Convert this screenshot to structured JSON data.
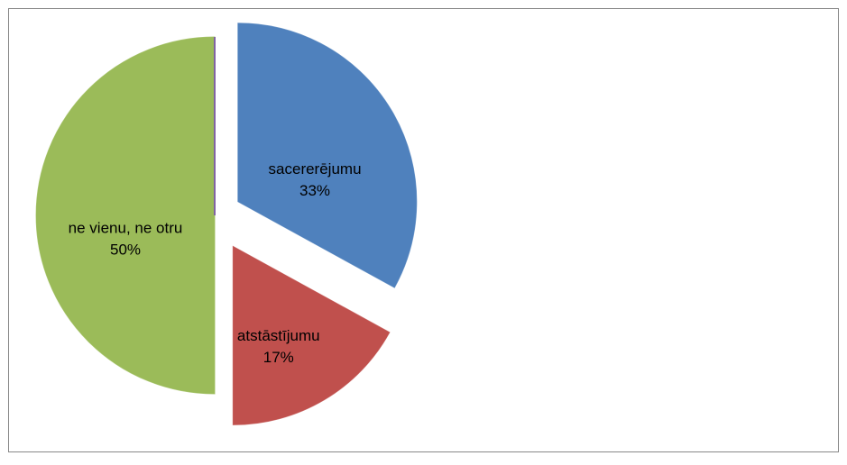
{
  "chart_data": {
    "type": "pie",
    "categories": [
      "sacererējumu",
      "atstāstījumu",
      "ne vienu, ne otru",
      null
    ],
    "values": [
      33,
      17,
      50,
      0
    ],
    "value_labels": [
      "33%",
      "17%",
      "50%",
      null
    ],
    "colors": [
      "#4f81bd",
      "#c0504d",
      "#9bbb59",
      "#8064a2"
    ]
  }
}
